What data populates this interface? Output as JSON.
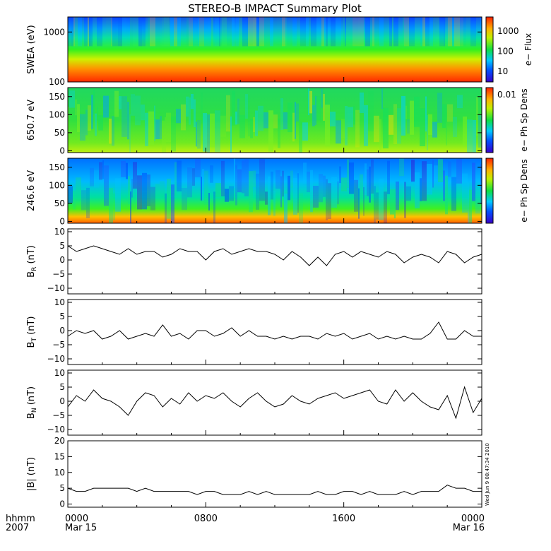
{
  "title": "STEREO-B IMPACT Summary Plot",
  "timestamp": "Wed Jun  9 08:47:34 2010",
  "bottom_axis": {
    "row1_label": "hhmm",
    "row2_label": "2007",
    "ticks": [
      {
        "top": "0000",
        "bottom": "Mar 15",
        "hour": 0
      },
      {
        "top": "0800",
        "bottom": "",
        "hour": 8
      },
      {
        "top": "1600",
        "bottom": "",
        "hour": 16
      },
      {
        "top": "0000",
        "bottom": "Mar 16",
        "hour": 24
      }
    ]
  },
  "colors": {
    "line": "#000000",
    "frame": "#000000"
  },
  "chart_data": [
    {
      "type": "heatmap",
      "ylabel": "SWEA (eV)",
      "ylog": true,
      "ylim": [
        100,
        2000
      ],
      "yticks": [
        100,
        1000
      ],
      "ytick_labels": [
        "100",
        "1000"
      ],
      "colorbar": {
        "label": "e− Flux",
        "log": true,
        "range": [
          3,
          5000
        ],
        "ticks": [
          10,
          100,
          1000
        ],
        "tick_labels": [
          "10",
          "100",
          "1000"
        ]
      }
    },
    {
      "type": "heatmap",
      "ylabel": "650.7 eV",
      "ylim": [
        -5,
        175
      ],
      "yticks": [
        0,
        50,
        100,
        150
      ],
      "ytick_labels": [
        "0",
        "50",
        "100",
        "150"
      ],
      "colorbar": {
        "label": "e− Ph Sp Dens",
        "ticks": [
          "0.01"
        ]
      }
    },
    {
      "type": "heatmap",
      "ylabel": "246.6 eV",
      "ylim": [
        -5,
        175
      ],
      "yticks": [
        0,
        50,
        100,
        150
      ],
      "ytick_labels": [
        "0",
        "50",
        "100",
        "150"
      ],
      "colorbar": {
        "label": "e− Ph Sp Dens",
        "ticks": []
      }
    },
    {
      "type": "line",
      "ylabel": "B",
      "ylabel_sub": "R",
      "ylabel_unit": " (nT)",
      "xlim": [
        0,
        24
      ],
      "ylim": [
        -12,
        11
      ],
      "yticks": [
        -10,
        -5,
        0,
        5,
        10
      ],
      "ytick_labels": [
        "−10",
        "−5",
        "0",
        "5",
        "10"
      ],
      "x": [
        0,
        0.5,
        1,
        1.5,
        2,
        2.5,
        3,
        3.5,
        4,
        4.5,
        5,
        5.5,
        6,
        6.5,
        7,
        7.5,
        8,
        8.5,
        9,
        9.5,
        10,
        10.5,
        11,
        11.5,
        12,
        12.5,
        13,
        13.5,
        14,
        14.5,
        15,
        15.5,
        16,
        16.5,
        17,
        17.5,
        18,
        18.5,
        19,
        19.5,
        20,
        20.5,
        21,
        21.5,
        22,
        22.5,
        23,
        23.5,
        24
      ],
      "y": [
        5,
        3,
        4,
        5,
        4,
        3,
        2,
        4,
        2,
        3,
        3,
        1,
        2,
        4,
        3,
        3,
        0,
        3,
        4,
        2,
        3,
        4,
        3,
        3,
        2,
        0,
        3,
        1,
        -2,
        1,
        -2,
        2,
        3,
        1,
        3,
        2,
        1,
        3,
        2,
        -1,
        1,
        2,
        1,
        -1,
        3,
        2,
        -1,
        1,
        2
      ]
    },
    {
      "type": "line",
      "ylabel": "B",
      "ylabel_sub": "T",
      "ylabel_unit": " (nT)",
      "xlim": [
        0,
        24
      ],
      "ylim": [
        -12,
        11
      ],
      "yticks": [
        -10,
        -5,
        0,
        5,
        10
      ],
      "ytick_labels": [
        "−10",
        "−5",
        "0",
        "5",
        "10"
      ],
      "x": [
        0,
        0.5,
        1,
        1.5,
        2,
        2.5,
        3,
        3.5,
        4,
        4.5,
        5,
        5.5,
        6,
        6.5,
        7,
        7.5,
        8,
        8.5,
        9,
        9.5,
        10,
        10.5,
        11,
        11.5,
        12,
        12.5,
        13,
        13.5,
        14,
        14.5,
        15,
        15.5,
        16,
        16.5,
        17,
        17.5,
        18,
        18.5,
        19,
        19.5,
        20,
        20.5,
        21,
        21.5,
        22,
        22.5,
        23,
        23.5,
        24
      ],
      "y": [
        -2,
        0,
        -1,
        0,
        -3,
        -2,
        0,
        -3,
        -2,
        -1,
        -2,
        2,
        -2,
        -1,
        -3,
        0,
        0,
        -2,
        -1,
        1,
        -2,
        0,
        -2,
        -2,
        -3,
        -2,
        -3,
        -2,
        -2,
        -3,
        -1,
        -2,
        -1,
        -3,
        -2,
        -1,
        -3,
        -2,
        -3,
        -2,
        -3,
        -3,
        -1,
        3,
        -3,
        -3,
        0,
        -2,
        -2
      ]
    },
    {
      "type": "line",
      "ylabel": "B",
      "ylabel_sub": "N",
      "ylabel_unit": " (nT)",
      "xlim": [
        0,
        24
      ],
      "ylim": [
        -12,
        11
      ],
      "yticks": [
        -10,
        -5,
        0,
        5,
        10
      ],
      "ytick_labels": [
        "−10",
        "−5",
        "0",
        "5",
        "10"
      ],
      "x": [
        0,
        0.5,
        1,
        1.5,
        2,
        2.5,
        3,
        3.5,
        4,
        4.5,
        5,
        5.5,
        6,
        6.5,
        7,
        7.5,
        8,
        8.5,
        9,
        9.5,
        10,
        10.5,
        11,
        11.5,
        12,
        12.5,
        13,
        13.5,
        14,
        14.5,
        15,
        15.5,
        16,
        16.5,
        17,
        17.5,
        18,
        18.5,
        19,
        19.5,
        20,
        20.5,
        21,
        21.5,
        22,
        22.5,
        23,
        23.5,
        24
      ],
      "y": [
        -2,
        2,
        0,
        4,
        1,
        0,
        -2,
        -5,
        0,
        3,
        2,
        -2,
        1,
        -1,
        3,
        0,
        2,
        1,
        3,
        0,
        -2,
        1,
        3,
        0,
        -2,
        -1,
        2,
        0,
        -1,
        1,
        2,
        3,
        1,
        2,
        3,
        4,
        0,
        -1,
        4,
        0,
        3,
        0,
        -2,
        -3,
        2,
        -6,
        5,
        -4,
        1
      ]
    },
    {
      "type": "line",
      "ylabel": "|B| (nT)",
      "xlim": [
        0,
        24
      ],
      "ylim": [
        -1,
        20
      ],
      "yticks": [
        0,
        5,
        10,
        15,
        20
      ],
      "ytick_labels": [
        "0",
        "5",
        "10",
        "15",
        "20"
      ],
      "x": [
        0,
        0.5,
        1,
        1.5,
        2,
        2.5,
        3,
        3.5,
        4,
        4.5,
        5,
        5.5,
        6,
        6.5,
        7,
        7.5,
        8,
        8.5,
        9,
        9.5,
        10,
        10.5,
        11,
        11.5,
        12,
        12.5,
        13,
        13.5,
        14,
        14.5,
        15,
        15.5,
        16,
        16.5,
        17,
        17.5,
        18,
        18.5,
        19,
        19.5,
        20,
        20.5,
        21,
        21.5,
        22,
        22.5,
        23,
        23.5,
        24
      ],
      "y": [
        5,
        4,
        4,
        5,
        5,
        5,
        5,
        5,
        4,
        5,
        4,
        4,
        4,
        4,
        4,
        3,
        4,
        4,
        3,
        3,
        3,
        4,
        3,
        4,
        3,
        3,
        3,
        3,
        3,
        4,
        3,
        3,
        4,
        4,
        3,
        4,
        3,
        3,
        3,
        4,
        3,
        4,
        4,
        4,
        6,
        5,
        5,
        4,
        4
      ]
    }
  ]
}
